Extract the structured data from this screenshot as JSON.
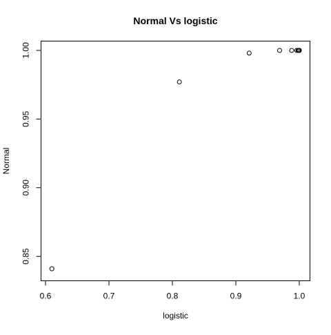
{
  "chart_data": {
    "type": "scatter",
    "title": "Normal Vs logistic",
    "xlabel": "logistic",
    "ylabel": "Normal",
    "xlim": [
      0.6,
      1.0
    ],
    "ylim": [
      0.835,
      1.005
    ],
    "xticks": [
      0.6,
      0.7,
      0.8,
      0.9,
      1.0
    ],
    "xtick_labels": [
      "0.6",
      "0.7",
      "0.8",
      "0.9",
      "1.0"
    ],
    "yticks": [
      0.85,
      0.9,
      0.95,
      1.0
    ],
    "ytick_labels": [
      "0.85",
      "0.90",
      "0.95",
      "1.00"
    ],
    "grid": false,
    "marker": "open-circle",
    "points": [
      {
        "x": 0.61,
        "y": 0.841
      },
      {
        "x": 0.811,
        "y": 0.977
      },
      {
        "x": 0.921,
        "y": 0.998
      },
      {
        "x": 0.969,
        "y": 1.0
      },
      {
        "x": 0.988,
        "y": 1.0
      },
      {
        "x": 0.996,
        "y": 1.0
      },
      {
        "x": 0.998,
        "y": 1.0
      },
      {
        "x": 0.999,
        "y": 1.0
      },
      {
        "x": 1.0,
        "y": 1.0
      },
      {
        "x": 1.0,
        "y": 1.0
      }
    ]
  }
}
